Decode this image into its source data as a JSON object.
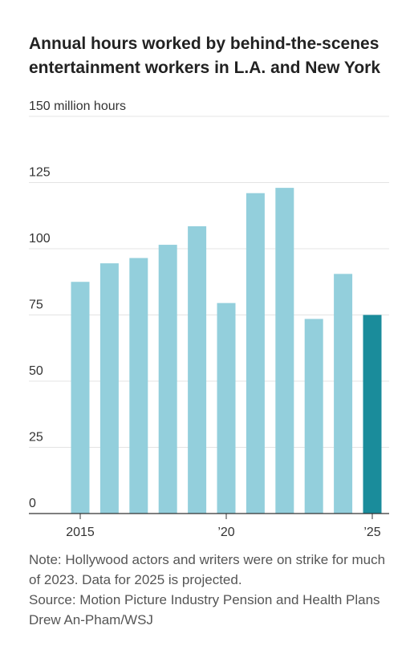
{
  "title": "Annual hours worked by behind-the-scenes entertainment workers in L.A. and New York",
  "chart_data": {
    "type": "bar",
    "title": "Annual hours worked by behind-the-scenes entertainment workers in L.A. and New York",
    "xlabel": "",
    "ylabel": "",
    "unit_label": "150 million hours",
    "ylim": [
      0,
      150
    ],
    "y_ticks": [
      0,
      25,
      50,
      75,
      100,
      125,
      150
    ],
    "y_tick_labels": [
      "0",
      "25",
      "50",
      "75",
      "100",
      "125",
      "150 million hours"
    ],
    "x_tick_labels": [
      {
        "year": 2015,
        "label": "2015"
      },
      {
        "year": 2020,
        "label": "’20"
      },
      {
        "year": 2025,
        "label": "’25"
      }
    ],
    "grid": true,
    "categories": [
      2015,
      2016,
      2017,
      2018,
      2019,
      2020,
      2021,
      2022,
      2023,
      2024,
      2025
    ],
    "values": [
      87.5,
      94.5,
      96.5,
      101.5,
      108.5,
      79.5,
      121,
      123,
      73.5,
      90.5,
      75
    ],
    "projected": [
      false,
      false,
      false,
      false,
      false,
      false,
      false,
      false,
      false,
      false,
      true
    ],
    "colors": {
      "bar": "#93cfdc",
      "projected_bar": "#1a8c9b",
      "grid": "#e4e4e4",
      "axis": "#333333"
    }
  },
  "notes": {
    "note": "Note: Hollywood actors and writers were on strike for much of 2023. Data for 2025 is projected.",
    "source": "Source: Motion Picture Industry Pension and Health Plans",
    "credit": "Drew An-Pham/WSJ"
  }
}
